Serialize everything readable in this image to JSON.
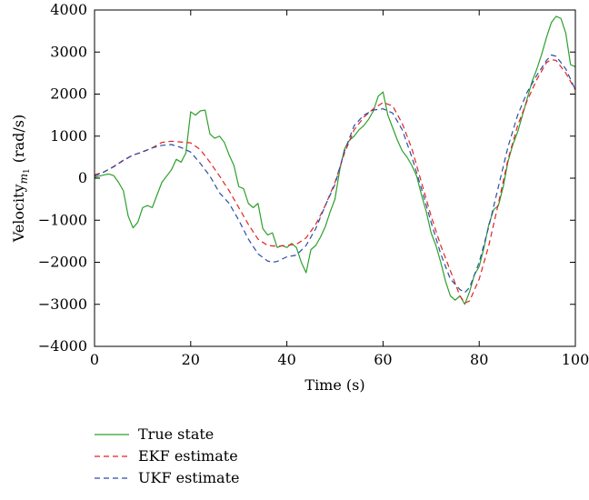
{
  "chart_data": {
    "type": "line",
    "title": "",
    "xlabel": "Time (s)",
    "ylabel_main": "Velocity",
    "ylabel_subscript_base": "m",
    "ylabel_subscript_index": "1",
    "ylabel_units": "(rad/s)",
    "xlim": [
      0,
      100
    ],
    "ylim": [
      -4000,
      4000
    ],
    "x_ticks": [
      0,
      20,
      40,
      60,
      80,
      100
    ],
    "x_tick_labels": [
      "0",
      "20",
      "40",
      "60",
      "80",
      "100"
    ],
    "y_ticks": [
      -4000,
      -3000,
      -2000,
      -1000,
      0,
      1000,
      2000,
      3000,
      4000
    ],
    "y_tick_labels": [
      "−4000",
      "−3000",
      "−2000",
      "−1000",
      "0",
      "1000",
      "2000",
      "3000",
      "4000"
    ],
    "grid": false,
    "legend_position": "below-left",
    "series": [
      {
        "name": "True state",
        "color": "#2ca02c",
        "dash": "solid",
        "points": [
          [
            0,
            20
          ],
          [
            1,
            50
          ],
          [
            2,
            80
          ],
          [
            3,
            100
          ],
          [
            4,
            60
          ],
          [
            5,
            -100
          ],
          [
            6,
            -300
          ],
          [
            7,
            -900
          ],
          [
            8,
            -1180
          ],
          [
            9,
            -1050
          ],
          [
            10,
            -700
          ],
          [
            11,
            -650
          ],
          [
            12,
            -700
          ],
          [
            13,
            -400
          ],
          [
            14,
            -100
          ],
          [
            15,
            50
          ],
          [
            16,
            200
          ],
          [
            17,
            450
          ],
          [
            18,
            380
          ],
          [
            19,
            600
          ],
          [
            20,
            1580
          ],
          [
            21,
            1500
          ],
          [
            22,
            1600
          ],
          [
            23,
            1620
          ],
          [
            24,
            1050
          ],
          [
            25,
            950
          ],
          [
            26,
            1000
          ],
          [
            27,
            850
          ],
          [
            28,
            550
          ],
          [
            29,
            300
          ],
          [
            30,
            -200
          ],
          [
            31,
            -250
          ],
          [
            32,
            -600
          ],
          [
            33,
            -700
          ],
          [
            34,
            -600
          ],
          [
            35,
            -1200
          ],
          [
            36,
            -1350
          ],
          [
            37,
            -1300
          ],
          [
            38,
            -1650
          ],
          [
            39,
            -1600
          ],
          [
            40,
            -1650
          ],
          [
            41,
            -1550
          ],
          [
            42,
            -1650
          ],
          [
            43,
            -2000
          ],
          [
            44,
            -2250
          ],
          [
            45,
            -1700
          ],
          [
            46,
            -1600
          ],
          [
            47,
            -1400
          ],
          [
            48,
            -1150
          ],
          [
            49,
            -800
          ],
          [
            50,
            -500
          ],
          [
            51,
            200
          ],
          [
            52,
            700
          ],
          [
            53,
            900
          ],
          [
            54,
            1000
          ],
          [
            55,
            1150
          ],
          [
            56,
            1250
          ],
          [
            57,
            1400
          ],
          [
            58,
            1600
          ],
          [
            59,
            1950
          ],
          [
            60,
            2050
          ],
          [
            61,
            1500
          ],
          [
            62,
            1200
          ],
          [
            63,
            900
          ],
          [
            64,
            650
          ],
          [
            65,
            500
          ],
          [
            66,
            300
          ],
          [
            67,
            50
          ],
          [
            68,
            -400
          ],
          [
            69,
            -800
          ],
          [
            70,
            -1300
          ],
          [
            71,
            -1600
          ],
          [
            72,
            -2000
          ],
          [
            73,
            -2450
          ],
          [
            74,
            -2800
          ],
          [
            75,
            -2900
          ],
          [
            76,
            -2800
          ],
          [
            77,
            -3000
          ],
          [
            78,
            -2700
          ],
          [
            79,
            -2300
          ],
          [
            80,
            -2100
          ],
          [
            81,
            -1650
          ],
          [
            82,
            -1100
          ],
          [
            83,
            -750
          ],
          [
            84,
            -650
          ],
          [
            85,
            -200
          ],
          [
            86,
            400
          ],
          [
            87,
            800
          ],
          [
            88,
            1100
          ],
          [
            89,
            1500
          ],
          [
            90,
            1900
          ],
          [
            91,
            2300
          ],
          [
            92,
            2600
          ],
          [
            93,
            2950
          ],
          [
            94,
            3350
          ],
          [
            95,
            3700
          ],
          [
            96,
            3850
          ],
          [
            97,
            3800
          ],
          [
            98,
            3450
          ],
          [
            99,
            2700
          ],
          [
            100,
            2650
          ]
        ]
      },
      {
        "name": "EKF estimate",
        "color": "#e32222",
        "dash": "6,4",
        "points": [
          [
            0,
            80
          ],
          [
            2,
            150
          ],
          [
            4,
            280
          ],
          [
            6,
            430
          ],
          [
            8,
            550
          ],
          [
            10,
            620
          ],
          [
            12,
            720
          ],
          [
            14,
            850
          ],
          [
            16,
            880
          ],
          [
            18,
            860
          ],
          [
            20,
            840
          ],
          [
            22,
            680
          ],
          [
            24,
            380
          ],
          [
            26,
            50
          ],
          [
            28,
            -300
          ],
          [
            30,
            -700
          ],
          [
            32,
            -1100
          ],
          [
            34,
            -1450
          ],
          [
            36,
            -1600
          ],
          [
            38,
            -1620
          ],
          [
            40,
            -1600
          ],
          [
            42,
            -1570
          ],
          [
            44,
            -1420
          ],
          [
            46,
            -1100
          ],
          [
            48,
            -650
          ],
          [
            50,
            -100
          ],
          [
            52,
            600
          ],
          [
            54,
            1150
          ],
          [
            56,
            1450
          ],
          [
            58,
            1650
          ],
          [
            60,
            1800
          ],
          [
            62,
            1720
          ],
          [
            64,
            1300
          ],
          [
            66,
            700
          ],
          [
            68,
            -100
          ],
          [
            70,
            -900
          ],
          [
            72,
            -1600
          ],
          [
            74,
            -2200
          ],
          [
            76,
            -2800
          ],
          [
            77,
            -2970
          ],
          [
            78,
            -2920
          ],
          [
            80,
            -2400
          ],
          [
            82,
            -1600
          ],
          [
            84,
            -600
          ],
          [
            86,
            450
          ],
          [
            88,
            1250
          ],
          [
            90,
            1850
          ],
          [
            92,
            2350
          ],
          [
            94,
            2750
          ],
          [
            95,
            2820
          ],
          [
            96,
            2800
          ],
          [
            98,
            2500
          ],
          [
            100,
            2100
          ]
        ]
      },
      {
        "name": "UKF estimate",
        "color": "#2a4ea6",
        "dash": "6,4",
        "points": [
          [
            0,
            50
          ],
          [
            2,
            150
          ],
          [
            4,
            270
          ],
          [
            6,
            420
          ],
          [
            8,
            550
          ],
          [
            10,
            630
          ],
          [
            12,
            720
          ],
          [
            14,
            780
          ],
          [
            16,
            800
          ],
          [
            18,
            730
          ],
          [
            20,
            620
          ],
          [
            22,
            350
          ],
          [
            24,
            50
          ],
          [
            26,
            -350
          ],
          [
            28,
            -600
          ],
          [
            30,
            -1000
          ],
          [
            32,
            -1450
          ],
          [
            34,
            -1800
          ],
          [
            36,
            -1970
          ],
          [
            37,
            -2000
          ],
          [
            38,
            -1980
          ],
          [
            40,
            -1870
          ],
          [
            42,
            -1830
          ],
          [
            44,
            -1600
          ],
          [
            46,
            -1200
          ],
          [
            48,
            -650
          ],
          [
            50,
            -150
          ],
          [
            52,
            650
          ],
          [
            54,
            1250
          ],
          [
            56,
            1500
          ],
          [
            58,
            1620
          ],
          [
            60,
            1650
          ],
          [
            62,
            1550
          ],
          [
            64,
            1150
          ],
          [
            66,
            500
          ],
          [
            68,
            -250
          ],
          [
            70,
            -1050
          ],
          [
            72,
            -1800
          ],
          [
            74,
            -2400
          ],
          [
            76,
            -2650
          ],
          [
            77,
            -2720
          ],
          [
            78,
            -2600
          ],
          [
            80,
            -2000
          ],
          [
            82,
            -1150
          ],
          [
            84,
            -200
          ],
          [
            86,
            750
          ],
          [
            88,
            1500
          ],
          [
            90,
            2050
          ],
          [
            92,
            2450
          ],
          [
            94,
            2800
          ],
          [
            95,
            2930
          ],
          [
            96,
            2900
          ],
          [
            98,
            2600
          ],
          [
            100,
            2100
          ]
        ]
      }
    ]
  }
}
